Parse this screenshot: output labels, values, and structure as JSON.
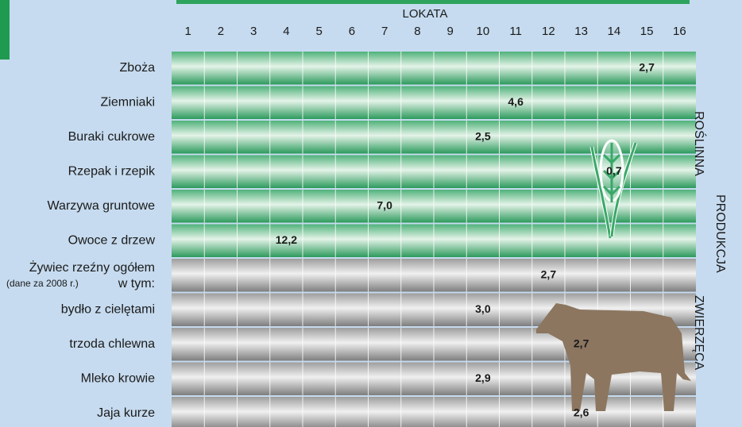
{
  "header": {
    "title": "LOKATA",
    "columns": [
      1,
      2,
      3,
      4,
      5,
      6,
      7,
      8,
      9,
      10,
      11,
      12,
      13,
      14,
      15,
      16
    ]
  },
  "group_label": "PRODUKCJA",
  "sections": [
    {
      "label": "ROŚLINNA",
      "rows": [
        {
          "label": "Zboża",
          "rank": 15,
          "value": "2,7"
        },
        {
          "label": "Ziemniaki",
          "rank": 11,
          "value": "4,6"
        },
        {
          "label": "Buraki cukrowe",
          "rank": 10,
          "value": "2,5"
        },
        {
          "label": "Rzepak i rzepik",
          "rank": 14,
          "value": "0,7"
        },
        {
          "label": "Warzywa gruntowe",
          "rank": 7,
          "value": "7,0"
        },
        {
          "label": "Owoce z drzew",
          "rank": 4,
          "value": "12,2"
        }
      ]
    },
    {
      "label": "ZWIERZĘCA",
      "rows": [
        {
          "label": "Żywiec rzeźny ogółem",
          "note": "(dane za 2008 r.)",
          "note2": "w tym:",
          "rank": 12,
          "value": "2,7"
        },
        {
          "label": "bydło z cielętami",
          "rank": 10,
          "value": "3,0"
        },
        {
          "label": "trzoda chlewna",
          "rank": 13,
          "value": "2,7"
        },
        {
          "label": "Mleko krowie",
          "rank": 10,
          "value": "2,9"
        },
        {
          "label": "Jaja kurze",
          "rank": 13,
          "value": "2,6"
        }
      ]
    }
  ]
}
